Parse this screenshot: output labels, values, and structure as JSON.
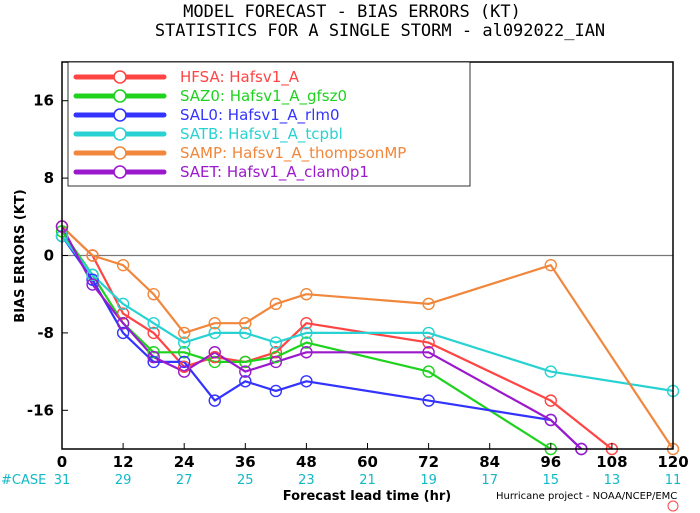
{
  "title_line1": "MODEL FORECAST - BIAS ERRORS (KT)",
  "title_line2": "STATISTICS FOR A SINGLE STORM - al092022_IAN",
  "credit": "Hurricane project - NOAA/NCEP/EMC",
  "case_label": "#CASE",
  "chart_data": {
    "type": "line",
    "title": "MODEL FORECAST - BIAS ERRORS (KT)",
    "subtitle": "STATISTICS FOR A SINGLE STORM - al092022_IAN",
    "xlabel": "Forecast lead time (hr)",
    "ylabel": "BIAS ERRORS (KT)",
    "xlim": [
      0,
      120
    ],
    "ylim": [
      -20,
      20
    ],
    "x_ticks": [
      0,
      12,
      24,
      36,
      48,
      60,
      72,
      84,
      96,
      108,
      120
    ],
    "y_ticks": [
      -16,
      -8,
      0,
      8,
      16
    ],
    "zero_line": true,
    "legend_position": "top-left",
    "case_counts": [
      31,
      29,
      27,
      25,
      23,
      21,
      19,
      17,
      15,
      13,
      11
    ],
    "series": [
      {
        "name": "HFSA:",
        "desc": "Hafsv1_A",
        "color": "#ff4444",
        "points": [
          [
            0,
            3
          ],
          [
            6,
            0
          ],
          [
            12,
            -6
          ],
          [
            18,
            -8
          ],
          [
            24,
            -11.5
          ],
          [
            30,
            -10.5
          ],
          [
            36,
            -11
          ],
          [
            42,
            -10
          ],
          [
            48,
            -7
          ],
          [
            72,
            -9
          ],
          [
            96,
            -15
          ],
          [
            108,
            -20
          ]
        ]
      },
      {
        "name": "SAZ0:",
        "desc": "Hafsv1_A_gfsz0",
        "color": "#1ed21e",
        "points": [
          [
            0,
            2.5
          ],
          [
            6,
            -2
          ],
          [
            12,
            -7
          ],
          [
            18,
            -10
          ],
          [
            24,
            -10
          ],
          [
            30,
            -11
          ],
          [
            36,
            -11
          ],
          [
            42,
            -10.5
          ],
          [
            48,
            -9
          ],
          [
            72,
            -12
          ],
          [
            96,
            -20
          ]
        ]
      },
      {
        "name": "SAL0:",
        "desc": "Hafsv1_A_rlm0",
        "color": "#3333ff",
        "points": [
          [
            0,
            2
          ],
          [
            6,
            -2.5
          ],
          [
            12,
            -8
          ],
          [
            18,
            -11
          ],
          [
            24,
            -11
          ],
          [
            30,
            -15
          ],
          [
            36,
            -13
          ],
          [
            42,
            -14
          ],
          [
            48,
            -13
          ],
          [
            72,
            -15
          ],
          [
            96,
            -17
          ],
          [
            102,
            -20
          ]
        ]
      },
      {
        "name": "SATB:",
        "desc": "Hafsv1_A_tcpbl",
        "color": "#28d2d2",
        "points": [
          [
            0,
            2
          ],
          [
            6,
            -2
          ],
          [
            12,
            -5
          ],
          [
            18,
            -7
          ],
          [
            24,
            -9
          ],
          [
            30,
            -8
          ],
          [
            36,
            -8
          ],
          [
            42,
            -9
          ],
          [
            48,
            -8
          ],
          [
            72,
            -8
          ],
          [
            96,
            -12
          ],
          [
            120,
            -14
          ]
        ]
      },
      {
        "name": "SAMP:",
        "desc": "Hafsv1_A_thompsonMP",
        "color": "#f0873c",
        "points": [
          [
            0,
            3
          ],
          [
            6,
            0
          ],
          [
            12,
            -1
          ],
          [
            18,
            -4
          ],
          [
            24,
            -8
          ],
          [
            30,
            -7
          ],
          [
            36,
            -7
          ],
          [
            42,
            -5
          ],
          [
            48,
            -4
          ],
          [
            72,
            -5
          ],
          [
            96,
            -1
          ],
          [
            120,
            -20
          ]
        ]
      },
      {
        "name": "SAET:",
        "desc": "Hafsv1_A_clam0p1",
        "color": "#9b19cc",
        "points": [
          [
            0,
            3
          ],
          [
            6,
            -3
          ],
          [
            12,
            -7
          ],
          [
            18,
            -10.5
          ],
          [
            24,
            -12
          ],
          [
            30,
            -10
          ],
          [
            36,
            -12
          ],
          [
            42,
            -11
          ],
          [
            48,
            -10
          ],
          [
            72,
            -10
          ],
          [
            96,
            -17
          ],
          [
            102,
            -20
          ]
        ]
      }
    ]
  }
}
